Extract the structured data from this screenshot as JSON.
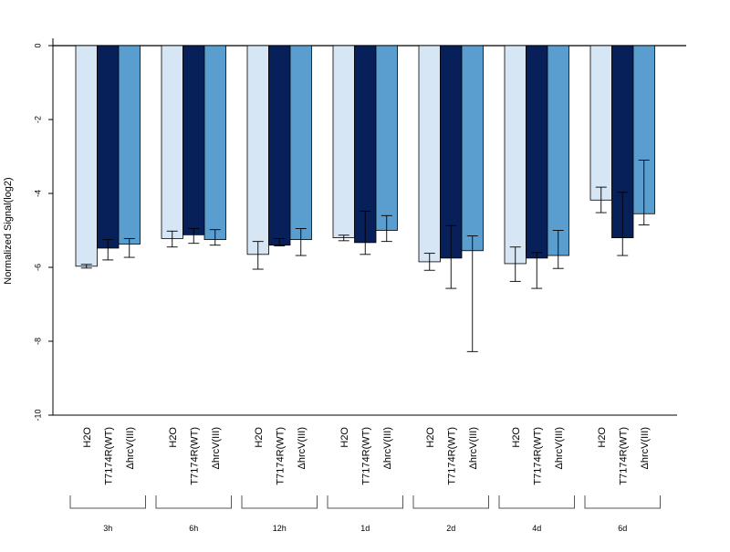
{
  "chart_data": {
    "type": "bar",
    "ylabel": "Normalized Signal(log2)",
    "ylim": [
      -10,
      0
    ],
    "yticks": [
      0,
      -2,
      -4,
      -6,
      -8,
      -10
    ],
    "groups": [
      "3h",
      "6h",
      "12h",
      "1d",
      "2d",
      "4d",
      "6d"
    ],
    "series_labels": [
      "H2O",
      "T7174R(WT)",
      "ΔhrcV(III)"
    ],
    "colors": [
      "#d6e6f5",
      "#08205a",
      "#5a9ecf"
    ],
    "series": [
      {
        "values": [
          -5.97,
          -5.22,
          -5.65,
          -5.2,
          -5.85,
          -5.9,
          -4.18
        ],
        "error_low": [
          -6.02,
          -5.45,
          -6.05,
          -5.28,
          -6.08,
          -6.38,
          -4.52
        ],
        "error_high": [
          -5.92,
          -5.02,
          -5.3,
          -5.13,
          -5.62,
          -5.45,
          -3.83
        ]
      },
      {
        "values": [
          -5.48,
          -5.12,
          -5.4,
          -5.33,
          -5.75,
          -5.75,
          -5.2
        ],
        "error_low": [
          -5.8,
          -5.35,
          -5.42,
          -5.65,
          -6.57,
          -6.57,
          -5.68
        ],
        "error_high": [
          -5.25,
          -4.95,
          -5.22,
          -4.48,
          -4.87,
          -5.6,
          -3.97
        ]
      },
      {
        "values": [
          -5.37,
          -5.25,
          -5.25,
          -5.0,
          -5.55,
          -5.68,
          -4.55
        ],
        "error_low": [
          -5.73,
          -5.4,
          -5.68,
          -5.3,
          -8.28,
          -6.03,
          -4.85
        ],
        "error_high": [
          -5.22,
          -4.98,
          -4.95,
          -4.6,
          -5.15,
          -5.0,
          -3.1
        ]
      }
    ]
  }
}
